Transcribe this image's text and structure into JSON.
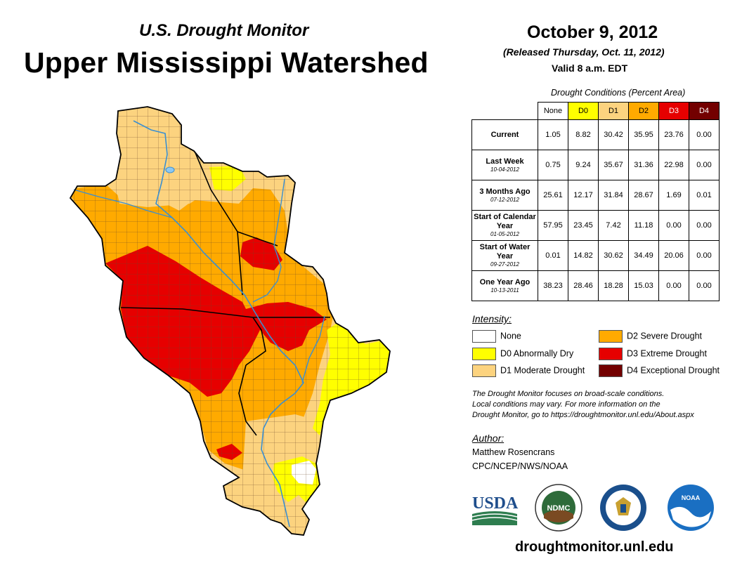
{
  "header": {
    "subtitle": "U.S. Drought Monitor",
    "title": "Upper Mississippi Watershed",
    "date": "October 9, 2012",
    "released": "(Released Thursday, Oct. 11, 2012)",
    "valid": "Valid 8 a.m. EDT"
  },
  "colors": {
    "none": "#ffffff",
    "d0": "#ffff00",
    "d1": "#fcd37f",
    "d2": "#ffaa00",
    "d3": "#e60000",
    "d4": "#730000",
    "water": "#3a8fd1",
    "border": "#5a3a1a"
  },
  "table": {
    "caption": "Drought Conditions (Percent Area)",
    "columns": [
      "None",
      "D0",
      "D1",
      "D2",
      "D3",
      "D4"
    ],
    "rows": [
      {
        "label": "Current",
        "date": "",
        "values": [
          "1.05",
          "8.82",
          "30.42",
          "35.95",
          "23.76",
          "0.00"
        ]
      },
      {
        "label": "Last Week",
        "date": "10-04-2012",
        "values": [
          "0.75",
          "9.24",
          "35.67",
          "31.36",
          "22.98",
          "0.00"
        ]
      },
      {
        "label": "3 Months Ago",
        "date": "07-12-2012",
        "values": [
          "25.61",
          "12.17",
          "31.84",
          "28.67",
          "1.69",
          "0.01"
        ]
      },
      {
        "label": "Start of Calendar Year",
        "date": "01-05-2012",
        "values": [
          "57.95",
          "23.45",
          "7.42",
          "11.18",
          "0.00",
          "0.00"
        ]
      },
      {
        "label": "Start of Water Year",
        "date": "09-27-2012",
        "values": [
          "0.01",
          "14.82",
          "30.62",
          "34.49",
          "20.06",
          "0.00"
        ]
      },
      {
        "label": "One Year Ago",
        "date": "10-13-2011",
        "values": [
          "38.23",
          "28.46",
          "18.28",
          "15.03",
          "0.00",
          "0.00"
        ]
      }
    ]
  },
  "legend": {
    "heading": "Intensity:",
    "items": [
      {
        "label": "None"
      },
      {
        "label": "D0 Abnormally Dry"
      },
      {
        "label": "D1 Moderate Drought"
      },
      {
        "label": "D2 Severe Drought"
      },
      {
        "label": "D3 Extreme Drought"
      },
      {
        "label": "D4 Exceptional Drought"
      }
    ]
  },
  "note": {
    "line1": "The Drought Monitor focuses on broad-scale conditions.",
    "line2": "Local conditions may vary. For more information on the",
    "line3": "Drought Monitor, go to https://droughtmonitor.unl.edu/About.aspx"
  },
  "author": {
    "heading": "Author:",
    "name": "Matthew Rosencrans",
    "org": "CPC/NCEP/NWS/NOAA"
  },
  "logos": {
    "usda": "USDA",
    "ndmc": "NDMC",
    "noaa": "NOAA"
  },
  "footer": {
    "url": "droughtmonitor.unl.edu"
  }
}
